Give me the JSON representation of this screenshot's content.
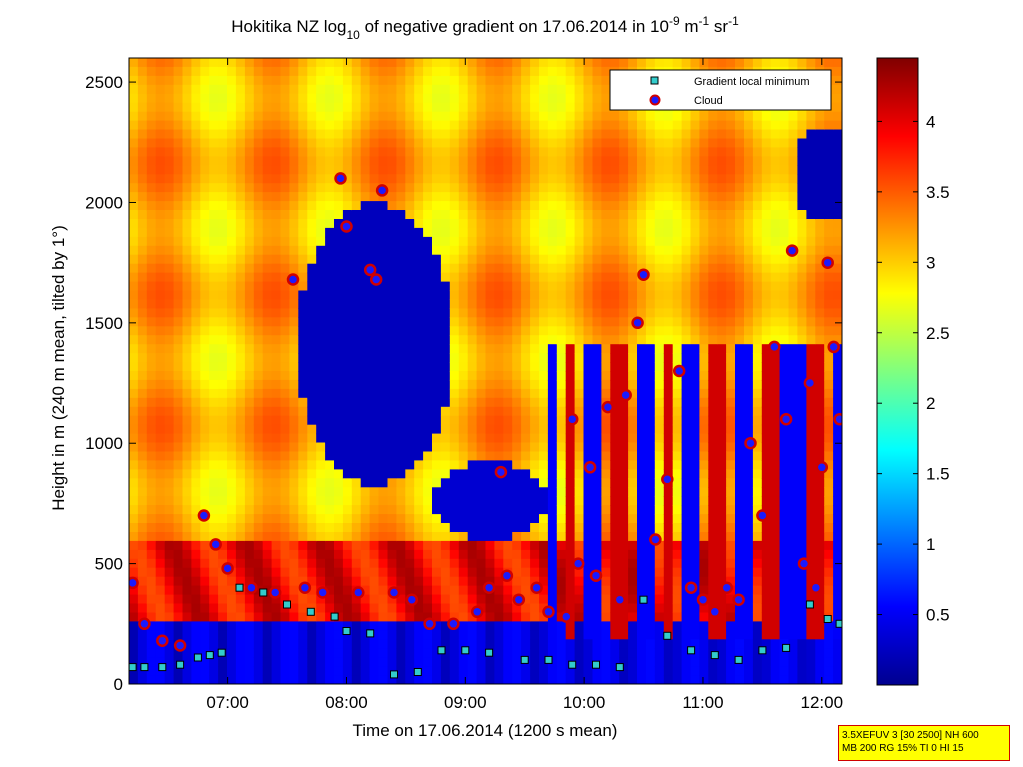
{
  "chart_data": {
    "type": "heatmap",
    "title": {
      "prefix": "Hokitika NZ log",
      "log_base": "10",
      "middle": " of negative gradient on 17.06.2014 in 10",
      "exp1": "-9",
      "unit_m": " m",
      "exp2": "-1",
      "unit_sr": " sr",
      "exp3": "-1"
    },
    "xlabel": "Time on 17.06.2014 (1200 s mean)",
    "ylabel": "Height in m (240 m mean, tilted by 1°)",
    "x_ticks": [
      "07:00",
      "08:00",
      "09:00",
      "10:00",
      "11:00",
      "12:00"
    ],
    "x_tick_hours": [
      7,
      8,
      9,
      10,
      11,
      12
    ],
    "xlim_hours": [
      6.17,
      12.17
    ],
    "y_ticks": [
      "0",
      "500",
      "1000",
      "1500",
      "2000",
      "2500"
    ],
    "y_tick_values": [
      0,
      500,
      1000,
      1500,
      2000,
      2500
    ],
    "ylim": [
      0,
      2600
    ],
    "colorbar": {
      "ticks": [
        "0.5",
        "1",
        "1.5",
        "2",
        "2.5",
        "3",
        "3.5",
        "4"
      ],
      "tick_values": [
        0.5,
        1,
        1.5,
        2,
        2.5,
        3,
        3.5,
        4
      ],
      "range": [
        0,
        4.45
      ],
      "colormap": "jet"
    },
    "legend": {
      "position": "top-right",
      "entries": [
        {
          "label": "Gradient local minimum",
          "marker": "square",
          "color": "#33cccc"
        },
        {
          "label": "Cloud",
          "marker": "circle",
          "color": "#d00000"
        }
      ]
    },
    "series": [
      {
        "name": "Gradient local minimum",
        "points": [
          [
            6.2,
            70
          ],
          [
            6.3,
            70
          ],
          [
            6.45,
            70
          ],
          [
            6.6,
            80
          ],
          [
            6.75,
            110
          ],
          [
            6.85,
            120
          ],
          [
            6.95,
            130
          ],
          [
            7.1,
            400
          ],
          [
            7.3,
            380
          ],
          [
            7.5,
            330
          ],
          [
            7.7,
            300
          ],
          [
            7.9,
            280
          ],
          [
            8.0,
            220
          ],
          [
            8.2,
            210
          ],
          [
            8.4,
            40
          ],
          [
            8.6,
            50
          ],
          [
            8.8,
            140
          ],
          [
            9.0,
            140
          ],
          [
            9.2,
            130
          ],
          [
            9.5,
            100
          ],
          [
            9.7,
            100
          ],
          [
            9.9,
            80
          ],
          [
            10.1,
            80
          ],
          [
            10.3,
            70
          ],
          [
            10.5,
            350
          ],
          [
            10.7,
            200
          ],
          [
            10.9,
            140
          ],
          [
            11.1,
            120
          ],
          [
            11.3,
            100
          ],
          [
            11.5,
            140
          ],
          [
            11.7,
            150
          ],
          [
            11.9,
            330
          ],
          [
            12.05,
            270
          ],
          [
            12.15,
            250
          ]
        ]
      },
      {
        "name": "Cloud",
        "points": [
          [
            6.2,
            420
          ],
          [
            6.3,
            250
          ],
          [
            6.45,
            180
          ],
          [
            6.6,
            160
          ],
          [
            6.8,
            700
          ],
          [
            6.9,
            580
          ],
          [
            7.0,
            480
          ],
          [
            7.2,
            400
          ],
          [
            7.4,
            380
          ],
          [
            7.55,
            1680
          ],
          [
            7.65,
            400
          ],
          [
            7.8,
            380
          ],
          [
            7.95,
            2100
          ],
          [
            8.0,
            1900
          ],
          [
            8.1,
            380
          ],
          [
            8.2,
            1720
          ],
          [
            8.25,
            1680
          ],
          [
            8.3,
            2050
          ],
          [
            8.4,
            380
          ],
          [
            8.55,
            350
          ],
          [
            8.7,
            250
          ],
          [
            8.9,
            250
          ],
          [
            9.1,
            300
          ],
          [
            9.2,
            400
          ],
          [
            9.3,
            880
          ],
          [
            9.35,
            450
          ],
          [
            9.45,
            350
          ],
          [
            9.6,
            400
          ],
          [
            9.7,
            300
          ],
          [
            9.85,
            280
          ],
          [
            9.9,
            1100
          ],
          [
            9.95,
            500
          ],
          [
            10.05,
            900
          ],
          [
            10.1,
            450
          ],
          [
            10.2,
            1150
          ],
          [
            10.3,
            350
          ],
          [
            10.35,
            1200
          ],
          [
            10.45,
            1500
          ],
          [
            10.5,
            1700
          ],
          [
            10.6,
            600
          ],
          [
            10.7,
            850
          ],
          [
            10.8,
            1300
          ],
          [
            10.9,
            400
          ],
          [
            11.0,
            350
          ],
          [
            11.1,
            300
          ],
          [
            11.2,
            400
          ],
          [
            11.3,
            350
          ],
          [
            11.4,
            1000
          ],
          [
            11.5,
            700
          ],
          [
            11.6,
            1400
          ],
          [
            11.7,
            1100
          ],
          [
            11.75,
            1800
          ],
          [
            11.85,
            500
          ],
          [
            11.9,
            1250
          ],
          [
            11.95,
            400
          ],
          [
            12.0,
            900
          ],
          [
            12.05,
            1750
          ],
          [
            12.1,
            1400
          ],
          [
            12.15,
            1100
          ]
        ]
      }
    ]
  },
  "info_box": {
    "line1": "3.5XEFUV 3 [30 2500] NH 600",
    "line2": "MB 200 RG 15% TI 0 HI 15"
  }
}
